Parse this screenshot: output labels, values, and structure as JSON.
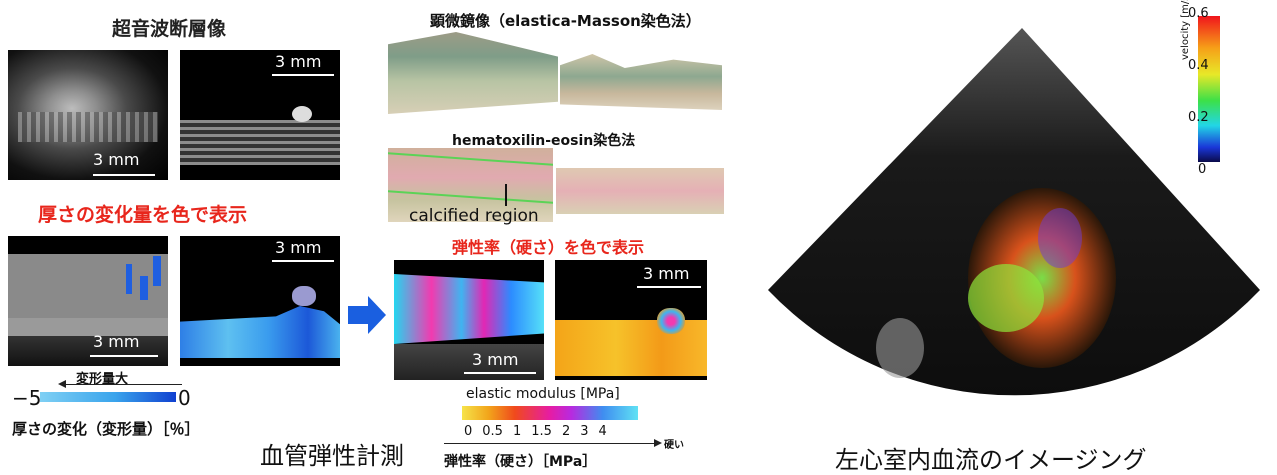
{
  "left": {
    "title": "超音波断層像",
    "scale_bars": [
      "3 mm",
      "3 mm",
      "3 mm",
      "3 mm"
    ],
    "thickness_heading": "厚さの変化量を色で表示",
    "colorbar": {
      "min": "−5",
      "max": "0",
      "label_top": "変形量大",
      "caption": "厚さの変化（変形量）［％］"
    }
  },
  "middle": {
    "microscope_title": "顕微鏡像（elastica-Masson染色法）",
    "he_title": "hematoxilin-eosin染色法",
    "calcified": "calcified region",
    "elastic_heading": "弾性率（硬さ）を色で表示",
    "scale_bars": [
      "3 mm",
      "3 mm"
    ],
    "elastic_label": "elastic modulus [MPa]",
    "ticks": [
      "0",
      "0.5",
      "1",
      "1.5",
      "2",
      "3",
      "4"
    ],
    "hard_label": "硬い",
    "caption_bold": "弾性率（硬さ）［MPa］"
  },
  "captions": {
    "vascular": "血管弾性計測",
    "cardiac": "左心室内血流のイメージング"
  },
  "velocity": {
    "label": "velocity [m/s]",
    "ticks": [
      "0.6",
      "0.4",
      "0.2",
      "0"
    ]
  },
  "colors": {
    "red": "#e8261c",
    "blue_arrow": "#1a5fe0"
  }
}
